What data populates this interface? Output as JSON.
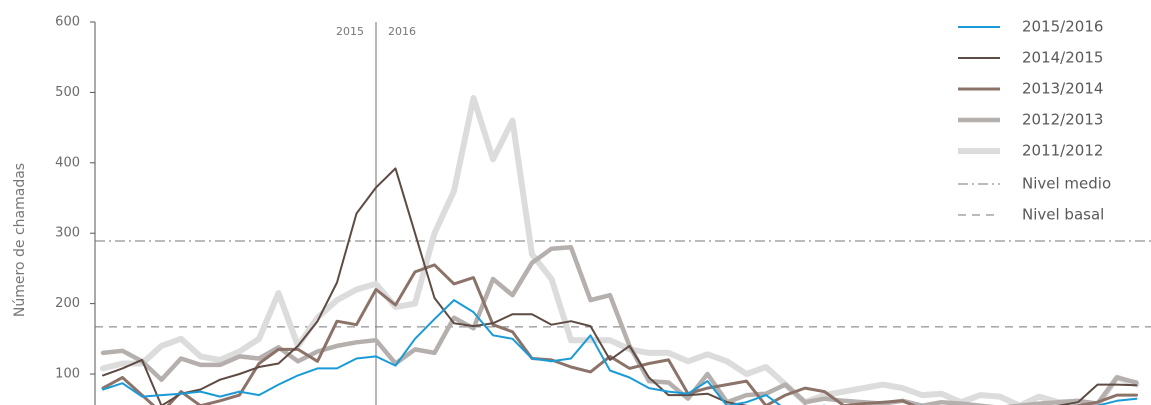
{
  "chart_data": {
    "type": "line",
    "ylabel": "Número de chamadas",
    "ylim": [
      56,
      600
    ],
    "yticks": [
      100,
      200,
      300,
      400,
      500,
      600
    ],
    "categories": [
      null,
      null,
      null,
      null,
      null,
      null,
      null,
      null,
      null,
      null,
      null,
      null,
      null,
      null,
      null,
      null,
      null,
      null,
      null,
      null,
      null,
      null,
      null,
      null,
      null,
      null,
      null,
      null,
      null,
      null,
      null,
      null,
      null,
      null,
      null,
      null,
      null,
      null,
      null,
      null,
      null,
      null,
      null,
      null,
      null,
      null,
      null,
      null,
      null,
      null,
      null,
      null,
      null,
      null
    ],
    "divider": {
      "index": 14,
      "left_label": "2015",
      "right_label": "2016"
    },
    "reference_lines": [
      {
        "name": "Nivel medio",
        "value": 289,
        "style": "dashdot",
        "color": "#777777"
      },
      {
        "name": "Nivel basal",
        "value": 167,
        "style": "dashed",
        "color": "#777777"
      }
    ],
    "series": [
      {
        "name": "2015/2016",
        "color": "#1a9bd7",
        "width": 2,
        "values": [
          78,
          87,
          68,
          70,
          72,
          75,
          68,
          75,
          70,
          85,
          98,
          108,
          108,
          122,
          125,
          112,
          150,
          178,
          205,
          188,
          155,
          150,
          122,
          118,
          122,
          155,
          105,
          95,
          80,
          75,
          72,
          90,
          55,
          60,
          70,
          50,
          52,
          55,
          50,
          48,
          50,
          52,
          55,
          50,
          52,
          48,
          50,
          52,
          50,
          48,
          52,
          55,
          62,
          65
        ]
      },
      {
        "name": "2014/2015",
        "color": "#5e4b43",
        "width": 2,
        "values": [
          98,
          108,
          120,
          55,
          72,
          78,
          92,
          100,
          110,
          115,
          140,
          175,
          230,
          328,
          365,
          392,
          300,
          208,
          172,
          168,
          172,
          185,
          185,
          170,
          175,
          168,
          120,
          140,
          95,
          70,
          70,
          72,
          60,
          55,
          52,
          50,
          55,
          50,
          48,
          52,
          50,
          52,
          50,
          48,
          50,
          52,
          50,
          48,
          52,
          55,
          60,
          85,
          85,
          84
        ]
      },
      {
        "name": "2013/2014",
        "color": "#8c7369",
        "width": 3,
        "values": [
          80,
          95,
          70,
          45,
          75,
          55,
          62,
          70,
          115,
          135,
          135,
          118,
          175,
          170,
          220,
          198,
          245,
          255,
          228,
          237,
          170,
          160,
          122,
          120,
          110,
          103,
          125,
          108,
          115,
          120,
          72,
          80,
          85,
          90,
          55,
          70,
          80,
          75,
          55,
          58,
          60,
          62,
          50,
          52,
          48,
          50,
          52,
          48,
          50,
          52,
          55,
          60,
          70,
          70
        ]
      },
      {
        "name": "2012/2013",
        "color": "#b5b0ad",
        "width": 4.5,
        "values": [
          130,
          133,
          118,
          92,
          122,
          113,
          113,
          125,
          122,
          138,
          118,
          132,
          140,
          145,
          148,
          115,
          135,
          130,
          180,
          165,
          235,
          212,
          258,
          278,
          280,
          205,
          212,
          140,
          90,
          88,
          65,
          100,
          60,
          70,
          72,
          85,
          60,
          65,
          62,
          60,
          58,
          62,
          55,
          60,
          58,
          55,
          52,
          55,
          58,
          60,
          62,
          58,
          95,
          88
        ]
      },
      {
        "name": "2011/2012",
        "color": "#dcdcdc",
        "width": 6,
        "values": [
          108,
          115,
          115,
          140,
          150,
          125,
          120,
          132,
          150,
          215,
          140,
          180,
          205,
          220,
          228,
          195,
          200,
          300,
          360,
          492,
          405,
          460,
          270,
          235,
          148,
          148,
          148,
          135,
          130,
          130,
          118,
          128,
          118,
          100,
          110,
          85,
          60,
          70,
          75,
          80,
          85,
          80,
          70,
          72,
          60,
          70,
          68,
          55,
          68,
          60,
          60,
          55,
          95,
          85
        ]
      }
    ]
  }
}
